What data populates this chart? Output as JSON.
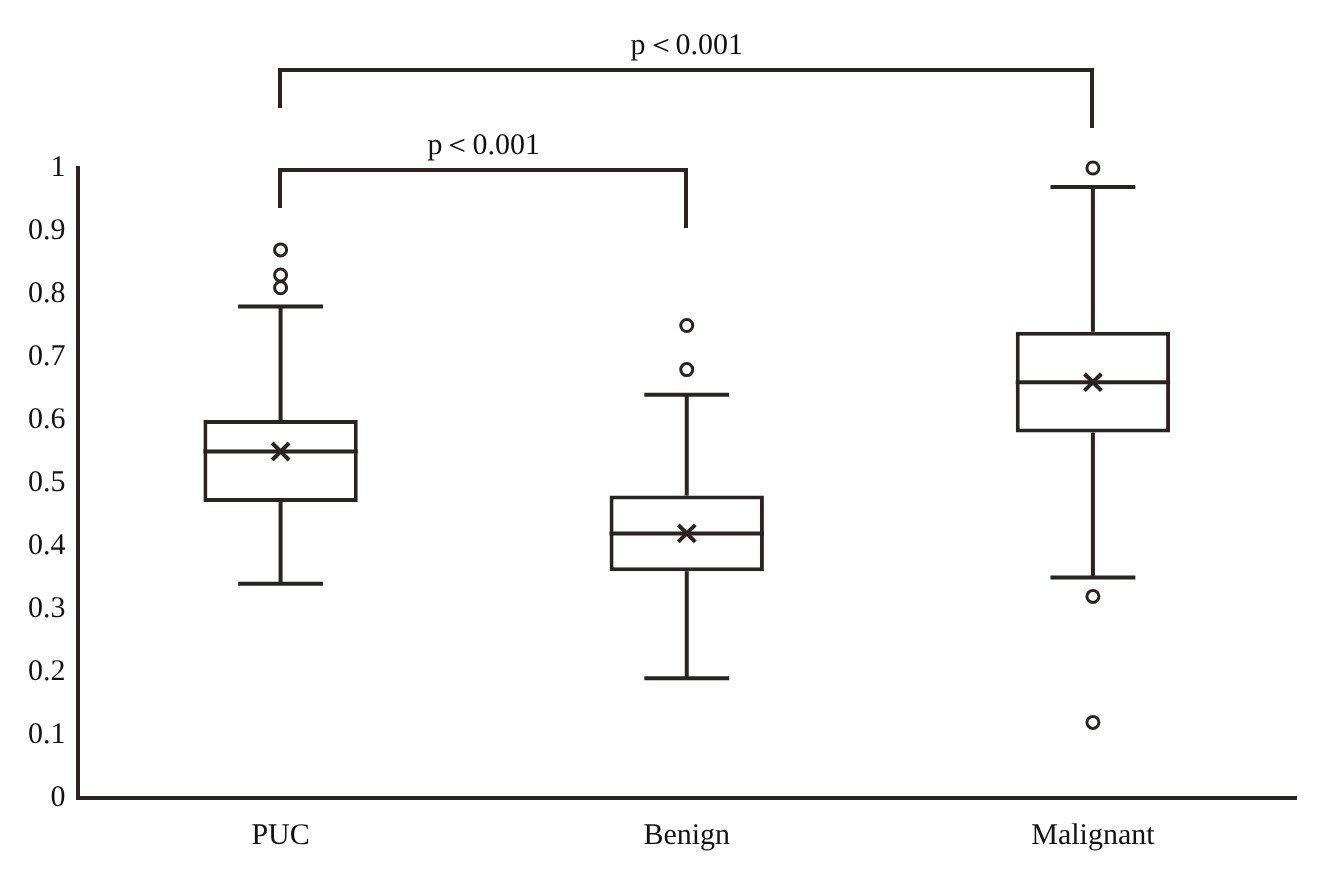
{
  "chart_data": {
    "type": "box",
    "categories": [
      "PUC",
      "Benign",
      "Malignant"
    ],
    "boxes": [
      {
        "low": 0.34,
        "q1": 0.47,
        "median": 0.55,
        "q3": 0.6,
        "high": 0.78,
        "mean": 0.55,
        "outliers": [
          0.81,
          0.83,
          0.87
        ]
      },
      {
        "low": 0.19,
        "q1": 0.36,
        "median": 0.42,
        "q3": 0.48,
        "high": 0.64,
        "mean": 0.42,
        "outliers": [
          0.68,
          0.75
        ]
      },
      {
        "low": 0.35,
        "q1": 0.58,
        "median": 0.66,
        "q3": 0.74,
        "high": 0.97,
        "mean": 0.66,
        "outliers": [
          0.12,
          0.32,
          1.0
        ]
      }
    ],
    "ylim": [
      0,
      1
    ],
    "yticks": [
      0,
      0.1,
      0.2,
      0.3,
      0.4,
      0.5,
      0.6,
      0.7,
      0.8,
      0.9,
      1
    ],
    "annotations": [
      "p＜0.001",
      "p＜0.001"
    ],
    "grid": false,
    "legend": false
  }
}
